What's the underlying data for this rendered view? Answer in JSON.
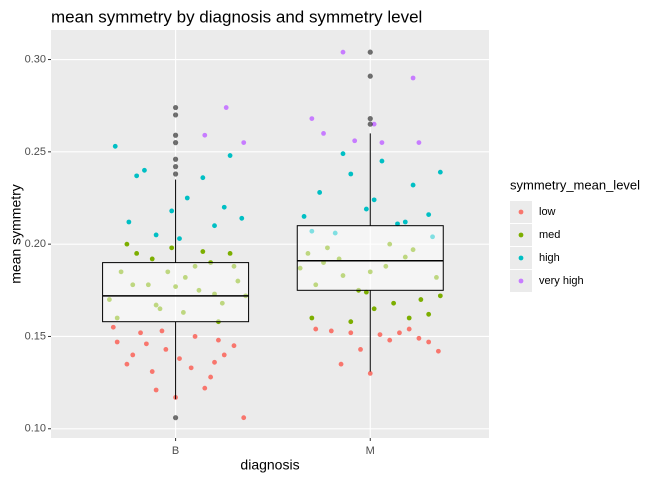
{
  "chart_data": {
    "type": "jitter-box",
    "title": "mean symmetry by diagnosis and symmetry level",
    "x_label": "diagnosis",
    "y_label": "mean symmetry",
    "categories": [
      "B",
      "M"
    ],
    "xlim": [
      0.36,
      2.61
    ],
    "ylim": [
      0.095,
      0.316
    ],
    "yticks": [
      {
        "value": 0.1,
        "label": "0.10"
      },
      {
        "value": 0.15,
        "label": "0.15"
      },
      {
        "value": 0.2,
        "label": "0.20"
      },
      {
        "value": 0.25,
        "label": "0.25"
      },
      {
        "value": 0.3,
        "label": "0.30"
      }
    ],
    "grid": true,
    "legend_title": "symmetry_mean_level",
    "legend_position": "right",
    "series": [
      {
        "name": "low",
        "color": "#F8766D",
        "x": [
          0.7,
          0.75,
          0.82,
          0.9,
          0.95,
          1.02,
          1.1,
          1.18,
          1.25,
          1.3,
          0.68,
          0.88,
          1.0,
          1.15,
          1.22,
          0.78,
          0.93,
          1.08,
          1.35,
          0.85,
          1.2,
          1.72,
          1.8,
          1.9,
          2.0,
          2.1,
          2.2,
          2.3,
          1.85,
          2.05,
          2.25,
          1.95,
          2.35,
          2.15
        ],
        "values": [
          0.147,
          0.135,
          0.152,
          0.121,
          0.143,
          0.138,
          0.15,
          0.128,
          0.14,
          0.145,
          0.155,
          0.131,
          0.117,
          0.122,
          0.148,
          0.14,
          0.153,
          0.133,
          0.106,
          0.146,
          0.136,
          0.154,
          0.153,
          0.152,
          0.13,
          0.148,
          0.154,
          0.147,
          0.135,
          0.151,
          0.149,
          0.143,
          0.142,
          0.152
        ]
      },
      {
        "name": "med",
        "color": "#7CAE00",
        "x": [
          0.66,
          0.72,
          0.8,
          0.86,
          0.92,
          0.98,
          1.05,
          1.12,
          1.18,
          1.24,
          1.3,
          1.36,
          0.7,
          0.78,
          0.88,
          0.96,
          1.04,
          1.14,
          1.22,
          1.32,
          0.75,
          0.9,
          1.0,
          1.1,
          1.2,
          1.28,
          1.64,
          1.7,
          1.78,
          1.86,
          1.94,
          2.02,
          2.1,
          2.18,
          2.26,
          2.34,
          1.68,
          1.76,
          1.9,
          2.0,
          2.12,
          2.22,
          2.3,
          1.72,
          1.84,
          1.98,
          2.08,
          2.2,
          2.36
        ],
        "values": [
          0.17,
          0.185,
          0.195,
          0.178,
          0.165,
          0.198,
          0.182,
          0.175,
          0.19,
          0.168,
          0.188,
          0.172,
          0.16,
          0.178,
          0.192,
          0.185,
          0.163,
          0.196,
          0.158,
          0.18,
          0.2,
          0.167,
          0.177,
          0.188,
          0.173,
          0.195,
          0.187,
          0.16,
          0.198,
          0.183,
          0.175,
          0.165,
          0.2,
          0.193,
          0.17,
          0.182,
          0.195,
          0.19,
          0.158,
          0.185,
          0.168,
          0.197,
          0.162,
          0.178,
          0.192,
          0.174,
          0.188,
          0.16,
          0.172
        ]
      },
      {
        "name": "high",
        "color": "#00BFC4",
        "x": [
          0.69,
          0.76,
          0.84,
          0.9,
          0.98,
          1.06,
          1.14,
          1.2,
          1.28,
          1.34,
          0.8,
          1.02,
          1.25,
          1.66,
          1.74,
          1.82,
          1.9,
          1.98,
          2.06,
          2.14,
          2.22,
          2.3,
          2.36,
          1.7,
          1.86,
          2.02,
          2.18,
          2.32
        ],
        "values": [
          0.253,
          0.212,
          0.24,
          0.205,
          0.218,
          0.225,
          0.236,
          0.21,
          0.248,
          0.214,
          0.237,
          0.203,
          0.22,
          0.215,
          0.228,
          0.206,
          0.238,
          0.219,
          0.245,
          0.211,
          0.232,
          0.216,
          0.239,
          0.207,
          0.249,
          0.224,
          0.212,
          0.204
        ]
      },
      {
        "name": "very high",
        "color": "#C77CFF",
        "x": [
          1.15,
          1.26,
          1.35,
          1.7,
          1.76,
          1.86,
          1.92,
          2.02,
          2.22,
          2.25,
          2.06
        ],
        "values": [
          0.259,
          0.274,
          0.255,
          0.268,
          0.26,
          0.304,
          0.256,
          0.265,
          0.29,
          0.255,
          0.255
        ]
      }
    ],
    "box": {
      "lower": [
        0.116,
        0.131
      ],
      "q1": [
        0.158,
        0.175
      ],
      "median": [
        0.172,
        0.191
      ],
      "q3": [
        0.19,
        0.21
      ],
      "upper": [
        0.235,
        0.26
      ],
      "outliers": [
        [
          0.274,
          0.27,
          0.259,
          0.255,
          0.246,
          0.242,
          0.238,
          0.106
        ],
        [
          0.304,
          0.291,
          0.268,
          0.265
        ]
      ]
    }
  }
}
